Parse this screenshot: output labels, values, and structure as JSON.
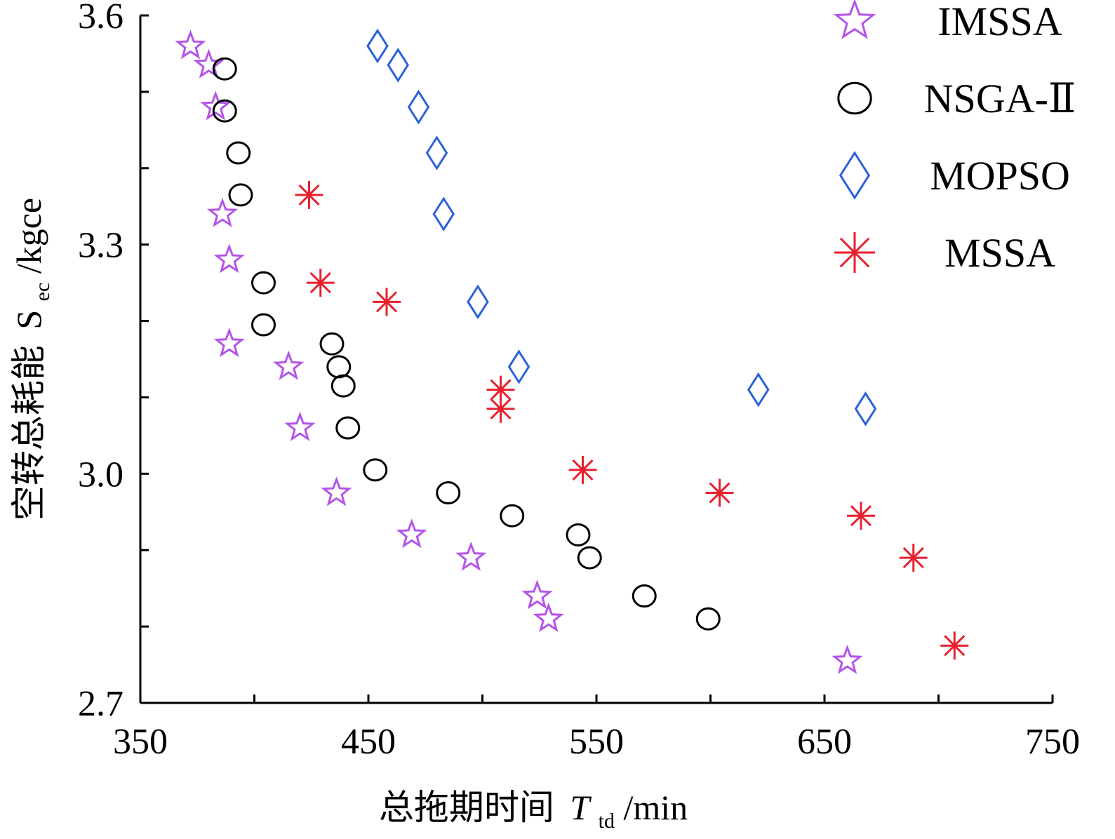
{
  "chart_data": {
    "type": "scatter",
    "title": "",
    "xlabel": {
      "main": "总拖期时间",
      "symbol": "T",
      "subscript": "td",
      "unit": "/min"
    },
    "ylabel": {
      "main": "空转总耗能",
      "symbol": "S",
      "subscript": "ec",
      "unit": "/kgce"
    },
    "xlim": [
      350,
      750
    ],
    "ylim": [
      2.7,
      3.6
    ],
    "x_ticks": [
      "350",
      "450",
      "550",
      "650",
      "750"
    ],
    "y_ticks": [
      "2.7",
      "3.0",
      "3.3",
      "3.6"
    ],
    "grid": false,
    "legend_position": "top-right",
    "series": [
      {
        "name": "IMSSA",
        "marker": "star",
        "color": "#b455ea",
        "points": [
          [
            372,
            3.56
          ],
          [
            380,
            3.535
          ],
          [
            383,
            3.48
          ],
          [
            386,
            3.34
          ],
          [
            389,
            3.28
          ],
          [
            389,
            3.17
          ],
          [
            415,
            3.14
          ],
          [
            420,
            3.06
          ],
          [
            436,
            2.975
          ],
          [
            469,
            2.92
          ],
          [
            495,
            2.89
          ],
          [
            524,
            2.84
          ],
          [
            529,
            2.81
          ],
          [
            660,
            2.755
          ]
        ]
      },
      {
        "name": "NSGA-Ⅱ",
        "marker": "circle",
        "color": "#000000",
        "points": [
          [
            387,
            3.53
          ],
          [
            387,
            3.475
          ],
          [
            393,
            3.42
          ],
          [
            394,
            3.365
          ],
          [
            404,
            3.25
          ],
          [
            404,
            3.195
          ],
          [
            434,
            3.17
          ],
          [
            437,
            3.14
          ],
          [
            439,
            3.115
          ],
          [
            441,
            3.06
          ],
          [
            453,
            3.005
          ],
          [
            485,
            2.975
          ],
          [
            513,
            2.945
          ],
          [
            542,
            2.92
          ],
          [
            547,
            2.89
          ],
          [
            571,
            2.84
          ],
          [
            599,
            2.81
          ]
        ]
      },
      {
        "name": "MOPSO",
        "marker": "diamond",
        "color": "#2c62d8",
        "points": [
          [
            454,
            3.56
          ],
          [
            463,
            3.535
          ],
          [
            472,
            3.48
          ],
          [
            480,
            3.42
          ],
          [
            483,
            3.34
          ],
          [
            498,
            3.225
          ],
          [
            516,
            3.14
          ],
          [
            621,
            3.11
          ],
          [
            668,
            3.085
          ]
        ]
      },
      {
        "name": "MSSA",
        "marker": "asterisk",
        "color": "#e8202e",
        "points": [
          [
            424,
            3.365
          ],
          [
            429,
            3.25
          ],
          [
            458,
            3.225
          ],
          [
            508,
            3.11
          ],
          [
            508,
            3.085
          ],
          [
            544,
            3.005
          ],
          [
            604,
            2.975
          ],
          [
            666,
            2.945
          ],
          [
            689,
            2.89
          ],
          [
            707,
            2.775
          ]
        ]
      }
    ]
  }
}
